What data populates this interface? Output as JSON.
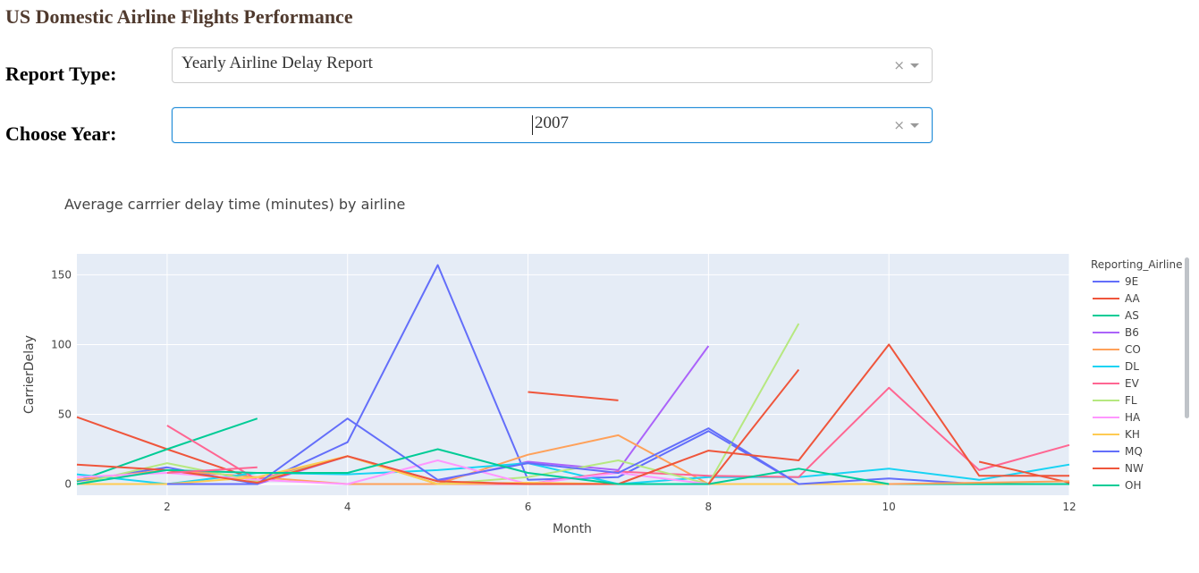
{
  "page": {
    "title": "US Domestic Airline Flights Performance"
  },
  "controls": {
    "report_type": {
      "label": "Report Type:",
      "value": "Yearly Airline Delay Report"
    },
    "year": {
      "label": "Choose Year:",
      "value": "2007"
    }
  },
  "chart_data": {
    "type": "line",
    "title": "Average carrrier delay time (minutes) by airline",
    "xlabel": "Month",
    "ylabel": "CarrierDelay",
    "xlim": [
      1,
      12
    ],
    "ylim": [
      -8,
      165
    ],
    "xticks": [
      2,
      4,
      6,
      8,
      10,
      12
    ],
    "yticks": [
      0,
      50,
      100,
      150
    ],
    "grid": true,
    "legend": {
      "title": "Reporting_Airline",
      "placement": "right"
    },
    "series": [
      {
        "name": "9E",
        "color": "#636efa",
        "x": [
          1,
          2,
          3,
          4,
          5,
          6,
          7,
          8,
          9
        ],
        "y": [
          2,
          12,
          0,
          30,
          157,
          3,
          5,
          38,
          0
        ]
      },
      {
        "name": "AA",
        "color": "#EF553B",
        "x": [
          1,
          2,
          3
        ],
        "y": [
          48,
          25,
          3
        ]
      },
      {
        "name": "AS",
        "color": "#00cc96",
        "x": [
          1,
          2,
          3
        ],
        "y": [
          2,
          25,
          47
        ]
      },
      {
        "name": "B6",
        "color": "#ab63fa",
        "x": [
          2,
          3,
          4,
          5,
          6,
          7,
          8
        ],
        "y": [
          0,
          0,
          20,
          2,
          16,
          10,
          99
        ]
      },
      {
        "name": "CO",
        "color": "#FFA15A",
        "x": [
          1,
          2,
          3,
          4,
          5,
          6,
          7,
          8
        ],
        "y": [
          3,
          10,
          5,
          0,
          0,
          21,
          35,
          0
        ]
      },
      {
        "name": "DL",
        "color": "#19d3f3",
        "x": [
          1,
          2,
          3,
          4,
          5,
          6,
          7,
          8,
          9,
          10,
          11,
          12
        ],
        "y": [
          7,
          0,
          8,
          7,
          10,
          15,
          0,
          5,
          5,
          11,
          3,
          14
        ]
      },
      {
        "name": "EV",
        "color": "#FF6692",
        "x": [
          2,
          3,
          4,
          5,
          6,
          7,
          8,
          9,
          10,
          11,
          12
        ],
        "y": [
          42,
          3,
          20,
          0,
          0,
          9,
          6,
          5,
          69,
          10,
          28
        ]
      },
      {
        "name": "FL",
        "color": "#B6E880",
        "x": [
          1,
          2,
          3,
          4,
          5,
          6,
          7,
          8,
          9
        ],
        "y": [
          0,
          15,
          2,
          20,
          0,
          5,
          17,
          0,
          115
        ]
      },
      {
        "name": "HA",
        "color": "#FF97FF",
        "x": [
          1,
          2,
          3,
          4,
          5,
          6,
          7,
          8,
          9,
          10,
          11,
          12
        ],
        "y": [
          5,
          8,
          3,
          0,
          17,
          0,
          8,
          0,
          0,
          0,
          0,
          0
        ]
      },
      {
        "name": "KH",
        "color": "#FECB52",
        "x": [
          1,
          2,
          3,
          4,
          5,
          6,
          7,
          8,
          9,
          10,
          11,
          12
        ],
        "y": [
          0,
          0,
          5,
          20,
          0,
          1,
          0,
          0,
          0,
          0,
          0,
          0
        ]
      },
      {
        "name": "MQ",
        "color": "#636efa",
        "x": [
          2,
          3,
          4,
          5,
          6,
          7,
          8,
          9,
          10,
          11,
          12
        ],
        "y": [
          0,
          0,
          47,
          3,
          15,
          8,
          40,
          0,
          4,
          0,
          0
        ]
      },
      {
        "name": "NW",
        "color": "#EF553B",
        "x": [
          1,
          2,
          3,
          4,
          5,
          6,
          7,
          8,
          9,
          10,
          11,
          12
        ],
        "y": [
          14,
          10,
          1,
          20,
          2,
          0,
          0,
          24,
          17,
          100,
          6,
          6
        ]
      },
      {
        "name": "OH",
        "color": "#00cc96",
        "x": [
          1,
          2,
          3,
          4,
          5,
          6,
          7,
          8,
          9,
          10,
          11,
          12
        ],
        "y": [
          0,
          10,
          8,
          8,
          25,
          8,
          0,
          0,
          11,
          0,
          0,
          0
        ]
      },
      {
        "name": "",
        "color": "#EF553B",
        "x": [
          6,
          7
        ],
        "y": [
          66,
          60
        ]
      },
      {
        "name": "",
        "color": "#EF553B",
        "x": [
          8,
          9
        ],
        "y": [
          0,
          82
        ]
      },
      {
        "name": "",
        "color": "#EF553B",
        "x": [
          11,
          12
        ],
        "y": [
          16,
          1
        ]
      },
      {
        "name": "",
        "color": "#FF6692",
        "x": [
          2,
          3
        ],
        "y": [
          8,
          12
        ]
      },
      {
        "name": "",
        "color": "#FFA15A",
        "x": [
          10,
          11,
          12
        ],
        "y": [
          0,
          1,
          2
        ]
      }
    ]
  }
}
